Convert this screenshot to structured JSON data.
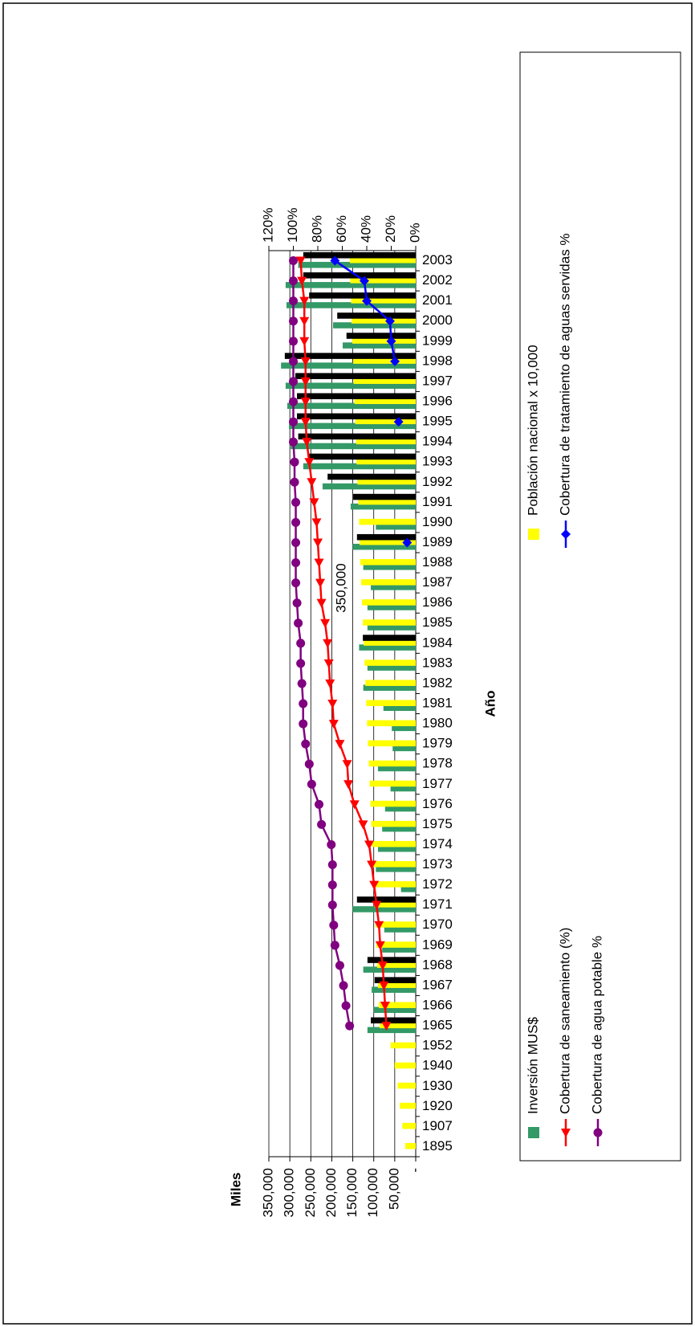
{
  "chart_data": {
    "type": "bar",
    "x_label": "Año",
    "y_label": "Miles",
    "annotation": "350,000",
    "categories": [
      "1895",
      "1907",
      "1920",
      "1930",
      "1940",
      "1952",
      "1965",
      "1966",
      "1967",
      "1968",
      "1969",
      "1970",
      "1971",
      "1972",
      "1973",
      "1974",
      "1975",
      "1976",
      "1977",
      "1978",
      "1979",
      "1980",
      "1981",
      "1982",
      "1983",
      "1984",
      "1985",
      "1986",
      "1987",
      "1988",
      "1989",
      "1990",
      "1991",
      "1992",
      "1993",
      "1994",
      "1995",
      "1996",
      "1997",
      "1998",
      "1999",
      "2000",
      "2001",
      "2002",
      "2003"
    ],
    "ylim": [
      0,
      350000
    ],
    "yticks": [
      {
        "value": 0,
        "label": "-"
      },
      {
        "value": 50000,
        "label": "50,000"
      },
      {
        "value": 100000,
        "label": "100,000"
      },
      {
        "value": 150000,
        "label": "150,000"
      },
      {
        "value": 200000,
        "label": "200,000"
      },
      {
        "value": 250000,
        "label": "250,000"
      },
      {
        "value": 300000,
        "label": "300,000"
      },
      {
        "value": 350000,
        "label": "350,000"
      }
    ],
    "y2lim": [
      0,
      120
    ],
    "y2ticks": [
      {
        "value": 0,
        "label": "0%"
      },
      {
        "value": 20,
        "label": "20%"
      },
      {
        "value": 40,
        "label": "40%"
      },
      {
        "value": 60,
        "label": "60%"
      },
      {
        "value": 80,
        "label": "80%"
      },
      {
        "value": 100,
        "label": "100%"
      },
      {
        "value": 120,
        "label": "120%"
      }
    ],
    "grid": true,
    "series": [
      {
        "name": "Inversión MUS$",
        "type": "bar",
        "color": "#339966",
        "values": [
          null,
          null,
          null,
          null,
          null,
          null,
          115000,
          100000,
          105000,
          125000,
          80000,
          75000,
          150000,
          35000,
          95000,
          90000,
          80000,
          73000,
          60000,
          90000,
          55000,
          57000,
          77000,
          125000,
          115000,
          135000,
          115000,
          115000,
          107000,
          125000,
          150000,
          95000,
          155000,
          222000,
          268000,
          298000,
          302000,
          306000,
          310000,
          321000,
          174000,
          197000,
          308000,
          310000,
          280000
        ]
      },
      {
        "name": "Cobertura de saneamiento (%)",
        "type": "line",
        "axis": "y2",
        "marker": "triangle",
        "color": "#ff0000",
        "values": [
          null,
          null,
          null,
          null,
          null,
          null,
          24,
          25,
          26,
          27,
          29,
          30,
          32,
          34,
          36,
          38,
          43,
          50,
          55,
          56,
          62,
          67,
          68,
          70,
          71,
          72,
          74,
          77,
          78,
          79,
          80,
          81,
          83,
          85,
          87,
          89,
          90,
          90,
          90,
          90,
          91,
          91,
          91,
          93,
          94
        ]
      },
      {
        "name": "Cobertura de agua potable %",
        "type": "line",
        "axis": "y2",
        "marker": "circle",
        "color": "#800080",
        "values": [
          null,
          null,
          null,
          null,
          null,
          null,
          54,
          57,
          59,
          62,
          66,
          67,
          68,
          68,
          68,
          69,
          77,
          79,
          85,
          87,
          90,
          92,
          92,
          93,
          94,
          94,
          96,
          97,
          98,
          98,
          98,
          98,
          98,
          99,
          99,
          100,
          100,
          100,
          100,
          100,
          100,
          100,
          100,
          100,
          100
        ]
      },
      {
        "name": "Población nacional x 10,000",
        "type": "bar",
        "color": "#ffff00",
        "values": [
          25000,
          32000,
          38000,
          43000,
          50000,
          60000,
          86000,
          88000,
          90000,
          92000,
          94000,
          96000,
          98000,
          100000,
          102000,
          104000,
          106000,
          108000,
          110000,
          112000,
          114000,
          116000,
          118000,
          120000,
          122000,
          124000,
          126000,
          128000,
          130000,
          132000,
          134000,
          135000,
          137000,
          139000,
          141000,
          142000,
          144000,
          146000,
          148000,
          149000,
          151000,
          153000,
          154000,
          156000,
          157000
        ]
      },
      {
        "name": "Cobertura de tratamiento de aguas servidas %",
        "type": "line",
        "axis": "y2",
        "marker": "diamond",
        "color": "#0000ff",
        "values": [
          null,
          null,
          null,
          null,
          null,
          null,
          null,
          null,
          null,
          null,
          null,
          null,
          null,
          null,
          null,
          null,
          null,
          null,
          null,
          null,
          null,
          null,
          null,
          null,
          null,
          null,
          null,
          null,
          null,
          null,
          7,
          null,
          null,
          null,
          null,
          null,
          14,
          null,
          null,
          17,
          20,
          21,
          40,
          42,
          66
        ]
      },
      {
        "type": "bar",
        "color": "#000000",
        "values": [
          null,
          null,
          null,
          null,
          null,
          null,
          107000,
          null,
          98000,
          115000,
          null,
          null,
          140000,
          null,
          null,
          null,
          null,
          null,
          null,
          null,
          null,
          null,
          null,
          null,
          null,
          126000,
          null,
          null,
          null,
          null,
          140000,
          null,
          149000,
          210000,
          254000,
          280000,
          283000,
          283000,
          287000,
          312000,
          165000,
          187000,
          254000,
          268000,
          268000
        ]
      }
    ]
  }
}
